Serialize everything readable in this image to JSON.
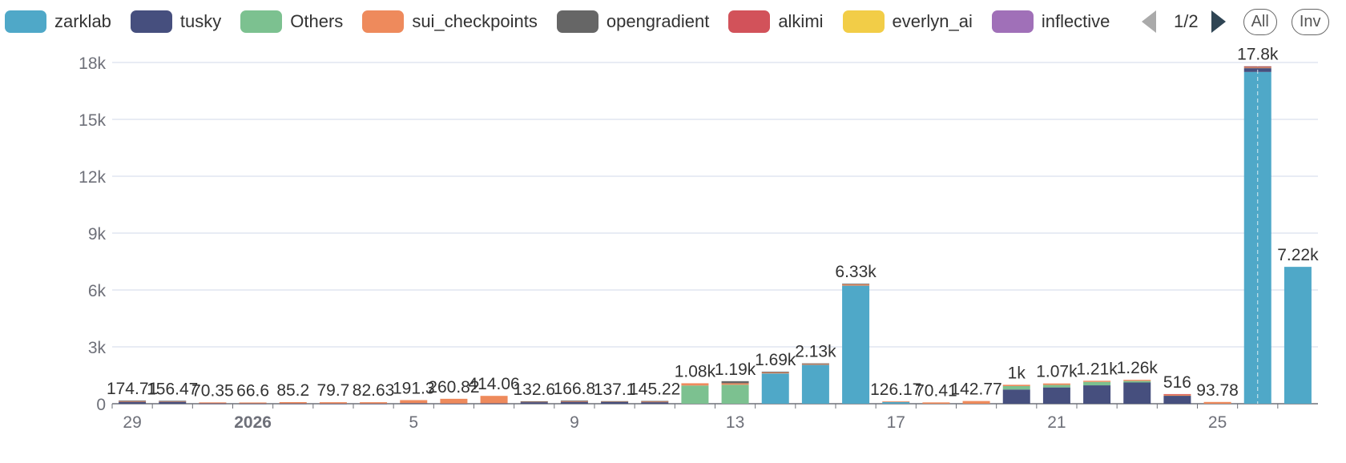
{
  "legend": {
    "items": [
      {
        "label": "zarklab",
        "color": "#4fa8c8"
      },
      {
        "label": "tusky",
        "color": "#464f7e"
      },
      {
        "label": "Others",
        "color": "#7cc190"
      },
      {
        "label": "sui_checkpoints",
        "color": "#ee8a5c"
      },
      {
        "label": "opengradient",
        "color": "#666666"
      },
      {
        "label": "alkimi",
        "color": "#d2525a"
      },
      {
        "label": "everlyn_ai",
        "color": "#f2cd47"
      },
      {
        "label": "inflective",
        "color": "#a070b8"
      }
    ],
    "page": "1/2",
    "all_label": "All",
    "inv_label": "Inv"
  },
  "chart_data": {
    "type": "bar",
    "stacked": true,
    "grid": true,
    "ylim": [
      0,
      18000
    ],
    "y_ticks": [
      "0",
      "3k",
      "6k",
      "9k",
      "12k",
      "15k",
      "18k"
    ],
    "x_ticks": [
      {
        "index": 0,
        "label": "29",
        "bold": false
      },
      {
        "index": 3,
        "label": "2026",
        "bold": true
      },
      {
        "index": 7,
        "label": "5",
        "bold": false
      },
      {
        "index": 11,
        "label": "9",
        "bold": false
      },
      {
        "index": 15,
        "label": "13",
        "bold": false
      },
      {
        "index": 19,
        "label": "17",
        "bold": false
      },
      {
        "index": 23,
        "label": "21",
        "bold": false
      },
      {
        "index": 27,
        "label": "25",
        "bold": false
      }
    ],
    "totals": [
      "174.71",
      "156.47",
      "70.35",
      "66.6",
      "85.2",
      "79.7",
      "82.63",
      "191.3",
      "260.82",
      "414.06",
      "132.6",
      "166.8",
      "137.1",
      "145.22",
      "1.08k",
      "1.19k",
      "1.69k",
      "2.13k",
      "6.33k",
      "126.17",
      "70.41",
      "142.77",
      "1k",
      "1.07k",
      "1.21k",
      "1.26k",
      "516",
      "93.78",
      "17.8k",
      "7.22k"
    ],
    "series": [
      {
        "name": "zarklab",
        "color": "#4fa8c8",
        "values": [
          0,
          0,
          0,
          0,
          0,
          0,
          0,
          0,
          0,
          0,
          0,
          0,
          0,
          0,
          0,
          0,
          1600,
          2050,
          6230,
          90,
          0,
          0,
          0,
          0,
          0,
          0,
          0,
          0,
          17500,
          7220
        ]
      },
      {
        "name": "tusky",
        "color": "#464f7e",
        "values": [
          100,
          100,
          20,
          15,
          15,
          10,
          10,
          30,
          10,
          20,
          80,
          100,
          90,
          80,
          0,
          0,
          0,
          0,
          0,
          0,
          0,
          0,
          750,
          860,
          970,
          1120,
          420,
          0,
          200,
          0
        ]
      },
      {
        "name": "Others",
        "color": "#7cc190",
        "values": [
          0,
          0,
          0,
          0,
          0,
          0,
          0,
          0,
          0,
          0,
          0,
          0,
          0,
          0,
          960,
          1000,
          0,
          0,
          0,
          0,
          0,
          0,
          180,
          130,
          180,
          80,
          0,
          0,
          0,
          0
        ]
      },
      {
        "name": "sui_checkpoints",
        "color": "#ee8a5c",
        "values": [
          40,
          40,
          50,
          50,
          70,
          70,
          70,
          160,
          250,
          394,
          40,
          50,
          40,
          60,
          120,
          80,
          50,
          60,
          80,
          36,
          70,
          142,
          70,
          80,
          60,
          60,
          60,
          93,
          40,
          0
        ]
      },
      {
        "name": "opengradient",
        "color": "#666666",
        "values": [
          30,
          15,
          0,
          0,
          0,
          0,
          0,
          0,
          0,
          0,
          10,
          15,
          5,
          5,
          0,
          110,
          40,
          20,
          20,
          0,
          0,
          0,
          0,
          0,
          0,
          0,
          0,
          0,
          40,
          0
        ]
      },
      {
        "name": "alkimi",
        "color": "#d2525a",
        "values": [
          0,
          0,
          0,
          0,
          0,
          0,
          0,
          0,
          0,
          0,
          0,
          0,
          0,
          0,
          0,
          0,
          0,
          0,
          0,
          0,
          0,
          0,
          0,
          0,
          0,
          0,
          30,
          0,
          20,
          0
        ]
      }
    ]
  }
}
